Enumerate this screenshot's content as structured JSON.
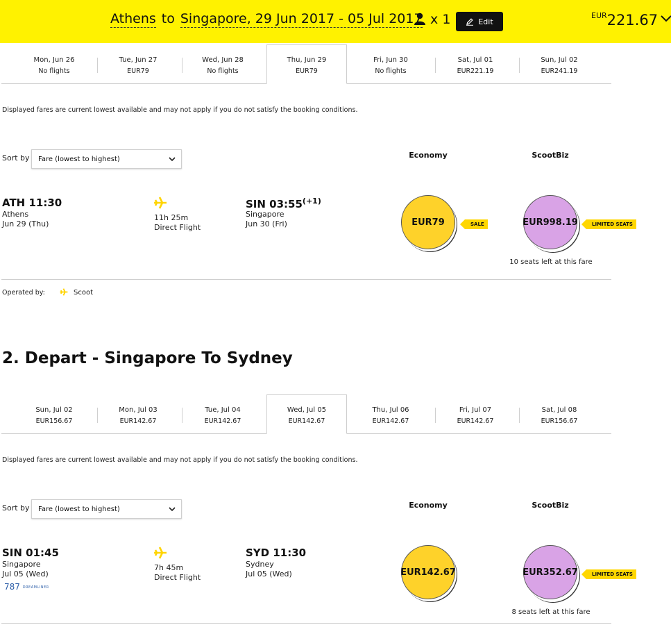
{
  "header": {
    "origin": "Athens",
    "to": "to",
    "destination": "Singapore, 29 Jun 2017 - 05 Jul 2017",
    "pax_count": "x 1",
    "edit_label": "Edit",
    "total_currency": "EUR",
    "total_amount": "221.67"
  },
  "leg1": {
    "dates": [
      {
        "label": "Mon, Jun 26",
        "fare": "No flights"
      },
      {
        "label": "Tue, Jun 27",
        "fare": "EUR79"
      },
      {
        "label": "Wed, Jun 28",
        "fare": "No flights"
      },
      {
        "label": "Thu, Jun 29",
        "fare": "EUR79"
      },
      {
        "label": "Fri, Jun 30",
        "fare": "No flights"
      },
      {
        "label": "Sat, Jul 01",
        "fare": "EUR221.19"
      },
      {
        "label": "Sun, Jul 02",
        "fare": "EUR241.19"
      }
    ],
    "disclaimer": "Displayed fares are current lowest available and may not apply if you do not satisfy the booking conditions.",
    "sort_label": "Sort by",
    "sort_value": "Fare (lowest to highest)",
    "col_economy": "Economy",
    "col_biz": "ScootBiz",
    "dep_code": "ATH 11:30",
    "dep_city": "Athens",
    "dep_date": "Jun 29 (Thu)",
    "duration": "11h 25m",
    "flight_type": "Direct Flight",
    "arr_code": "SIN 03:55",
    "arr_plus": "(+1)",
    "arr_city": "Singapore",
    "arr_date": "Jun 30 (Fri)",
    "eco_fare": "EUR79",
    "eco_tag": "SALE",
    "biz_fare": "EUR998.19",
    "biz_tag": "LIMITED SEATS",
    "seats_left": "10 seats left at this fare",
    "operated_label": "Operated by:",
    "operated_name": "Scoot"
  },
  "leg2": {
    "title": "2. Depart - Singapore To Sydney",
    "dates": [
      {
        "label": "Sun, Jul 02",
        "fare": "EUR156.67"
      },
      {
        "label": "Mon, Jul 03",
        "fare": "EUR142.67"
      },
      {
        "label": "Tue, Jul 04",
        "fare": "EUR142.67"
      },
      {
        "label": "Wed, Jul 05",
        "fare": "EUR142.67"
      },
      {
        "label": "Thu, Jul 06",
        "fare": "EUR142.67"
      },
      {
        "label": "Fri, Jul 07",
        "fare": "EUR142.67"
      },
      {
        "label": "Sat, Jul 08",
        "fare": "EUR156.67"
      }
    ],
    "disclaimer": "Displayed fares are current lowest available and may not apply if you do not satisfy the booking conditions.",
    "sort_label": "Sort by",
    "sort_value": "Fare (lowest to highest)",
    "col_economy": "Economy",
    "col_biz": "ScootBiz",
    "dep_code": "SIN 01:45",
    "dep_city": "Singapore",
    "dep_date": "Jul 05 (Wed)",
    "aircraft_num": "787",
    "aircraft_name": "DREAMLINER",
    "duration": "7h 45m",
    "flight_type": "Direct Flight",
    "arr_code": "SYD 11:30",
    "arr_city": "Sydney",
    "arr_date": "Jul 05 (Wed)",
    "eco_fare": "EUR142.67",
    "biz_fare": "EUR352.67",
    "biz_tag": "LIMITED SEATS",
    "seats_left": "8 seats left at this fare"
  },
  "colors": {
    "header_bg": "#fff200",
    "economy": "#fed22a",
    "scootbiz": "#d9a3e6",
    "tag": "#ffd700"
  }
}
